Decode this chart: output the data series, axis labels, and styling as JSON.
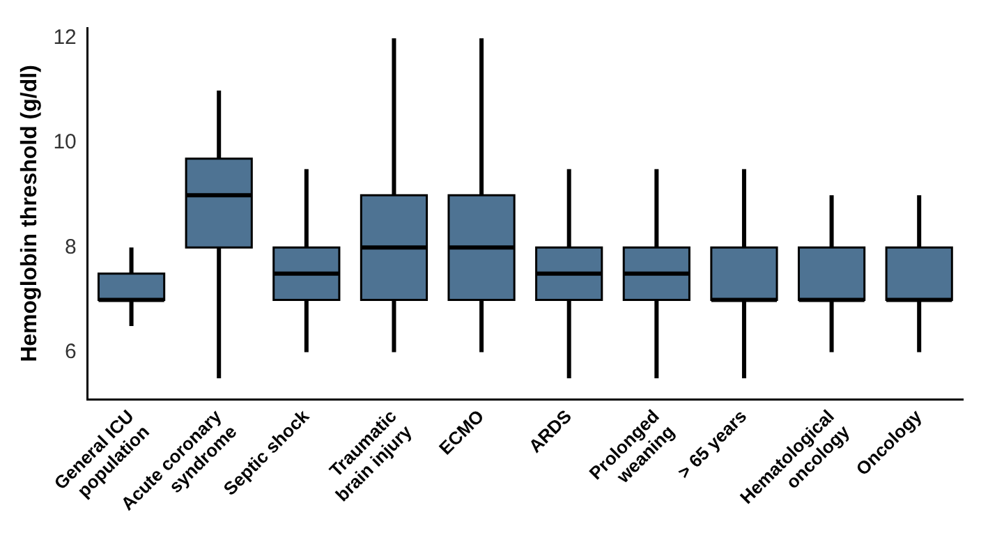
{
  "chart_data": {
    "type": "box",
    "ylabel": "Hemoglobin threshold (g/dl)",
    "categories": [
      "General ICU population",
      "Acute coronary syndrome",
      "Septic shock",
      "Traumatic brain injury",
      "ECMO",
      "ARDS",
      "Prolonged weaning",
      "> 65 years",
      "Hematological oncology",
      "Oncology"
    ],
    "color": "#4e7393",
    "boxes": [
      {
        "low": 6.5,
        "q1": 7,
        "median": 7,
        "q3": 7.5,
        "high": 8
      },
      {
        "low": 5.5,
        "q1": 8,
        "median": 9,
        "q3": 9.7,
        "high": 11
      },
      {
        "low": 6,
        "q1": 7,
        "median": 7.5,
        "q3": 8,
        "high": 9.5
      },
      {
        "low": 6,
        "q1": 7,
        "median": 8,
        "q3": 9,
        "high": 12
      },
      {
        "low": 6,
        "q1": 7,
        "median": 8,
        "q3": 9,
        "high": 12
      },
      {
        "low": 5.5,
        "q1": 7,
        "median": 7.5,
        "q3": 8,
        "high": 9.5
      },
      {
        "low": 5.5,
        "q1": 7,
        "median": 7.5,
        "q3": 8,
        "high": 9.5
      },
      {
        "low": 5.5,
        "q1": 7,
        "median": 7,
        "q3": 8,
        "high": 9.5
      },
      {
        "low": 6,
        "q1": 7,
        "median": 7,
        "q3": 8,
        "high": 9
      },
      {
        "low": 6,
        "q1": 7,
        "median": 7,
        "q3": 8,
        "high": 9
      }
    ],
    "ylim": [
      5.1,
      12.2
    ],
    "yticks": [
      6,
      8,
      10,
      12
    ]
  }
}
